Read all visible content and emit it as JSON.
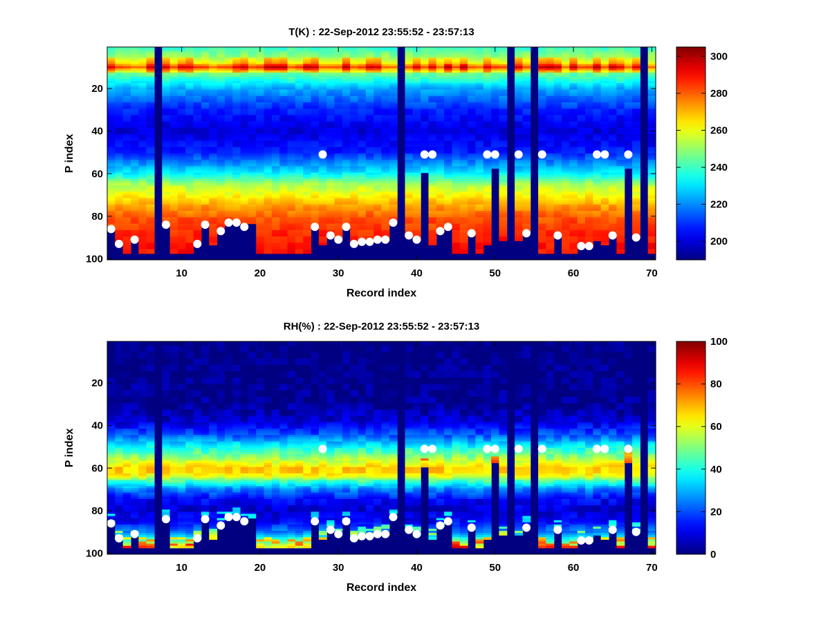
{
  "chart_data": [
    {
      "type": "heatmap",
      "title": "T(K) : 22-Sep-2012 23:55:52 - 23:57:13",
      "xlabel": "Record index",
      "ylabel": "P index",
      "xlim": [
        0.5,
        70.5
      ],
      "ylim": [
        0.5,
        100.5
      ],
      "y_reversed": true,
      "x_ticks": [
        "10",
        "20",
        "30",
        "40",
        "50",
        "60",
        "70"
      ],
      "y_ticks": [
        "20",
        "40",
        "60",
        "80",
        "100"
      ],
      "colorbar": {
        "colormap": "jet",
        "range": [
          190,
          305
        ],
        "ticks": [
          "200",
          "220",
          "240",
          "260",
          "280",
          "300"
        ]
      },
      "profile": {
        "p_index": [
          1,
          5,
          8,
          10,
          13,
          20,
          30,
          40,
          50,
          60,
          65,
          70,
          75,
          80,
          85,
          90,
          95,
          100
        ],
        "value": [
          240,
          250,
          262,
          282,
          246,
          224,
          208,
          200,
          208,
          232,
          252,
          262,
          272,
          280,
          284,
          287,
          289,
          290
        ]
      },
      "masked_columns": [
        7,
        38,
        52,
        55,
        69
      ],
      "column_bottom": [
        86,
        94,
        98,
        92,
        98,
        98,
        101,
        84,
        98,
        98,
        98,
        94,
        84,
        94,
        86,
        84,
        84,
        84,
        84,
        98,
        98,
        98,
        98,
        98,
        98,
        98,
        86,
        94,
        90,
        92,
        86,
        94,
        93,
        93,
        92,
        92,
        83,
        101,
        90,
        92,
        60,
        94,
        88,
        86,
        98,
        98,
        88,
        98,
        94,
        58,
        92,
        101,
        92,
        88,
        101,
        98,
        98,
        90,
        98,
        98,
        95,
        95,
        92,
        94,
        90,
        98,
        58,
        91,
        101,
        98
      ],
      "markers": [
        [
          1,
          86
        ],
        [
          2,
          93
        ],
        [
          4,
          91
        ],
        [
          8,
          84
        ],
        [
          12,
          93
        ],
        [
          13,
          84
        ],
        [
          15,
          87
        ],
        [
          16,
          83
        ],
        [
          17,
          83
        ],
        [
          18,
          85
        ],
        [
          27,
          85
        ],
        [
          28,
          51
        ],
        [
          29,
          89
        ],
        [
          30,
          91
        ],
        [
          31,
          85
        ],
        [
          32,
          93
        ],
        [
          33,
          92
        ],
        [
          34,
          92
        ],
        [
          35,
          91
        ],
        [
          36,
          91
        ],
        [
          37,
          83
        ],
        [
          39,
          89
        ],
        [
          40,
          91
        ],
        [
          41,
          51
        ],
        [
          42,
          51
        ],
        [
          43,
          87
        ],
        [
          44,
          85
        ],
        [
          47,
          88
        ],
        [
          49,
          51
        ],
        [
          50,
          51
        ],
        [
          53,
          51
        ],
        [
          54,
          88
        ],
        [
          56,
          51
        ],
        [
          58,
          89
        ],
        [
          61,
          94
        ],
        [
          62,
          94
        ],
        [
          63,
          51
        ],
        [
          64,
          51
        ],
        [
          65,
          89
        ],
        [
          67,
          51
        ],
        [
          68,
          90
        ]
      ]
    },
    {
      "type": "heatmap",
      "title": "RH(%) : 22-Sep-2012 23:55:52 - 23:57:13",
      "xlabel": "Record index",
      "ylabel": "P index",
      "xlim": [
        0.5,
        70.5
      ],
      "ylim": [
        0.5,
        100.5
      ],
      "y_reversed": true,
      "x_ticks": [
        "10",
        "20",
        "30",
        "40",
        "50",
        "60",
        "70"
      ],
      "y_ticks": [
        "20",
        "40",
        "60",
        "80",
        "100"
      ],
      "colorbar": {
        "colormap": "jet",
        "range": [
          0,
          100
        ],
        "ticks": [
          "0",
          "20",
          "40",
          "60",
          "80",
          "100"
        ]
      },
      "profile": {
        "p_index": [
          1,
          30,
          38,
          45,
          50,
          55,
          58,
          60,
          62,
          64,
          66,
          70,
          75,
          80,
          85,
          90,
          94,
          97,
          100
        ],
        "value": [
          0,
          2,
          8,
          22,
          38,
          52,
          62,
          67,
          66,
          60,
          45,
          25,
          12,
          8,
          12,
          25,
          45,
          62,
          60
        ]
      },
      "masked_columns": [
        7,
        38,
        52,
        55,
        69
      ],
      "column_bottom": [
        86,
        94,
        98,
        92,
        98,
        98,
        101,
        84,
        98,
        98,
        98,
        94,
        84,
        94,
        86,
        84,
        84,
        84,
        84,
        98,
        98,
        98,
        98,
        98,
        98,
        98,
        86,
        94,
        90,
        92,
        86,
        94,
        93,
        93,
        92,
        92,
        83,
        101,
        90,
        92,
        60,
        94,
        88,
        86,
        98,
        98,
        88,
        98,
        94,
        58,
        92,
        101,
        92,
        88,
        101,
        98,
        98,
        90,
        98,
        98,
        95,
        95,
        92,
        94,
        90,
        98,
        58,
        91,
        101,
        98
      ],
      "markers": [
        [
          1,
          86
        ],
        [
          2,
          93
        ],
        [
          4,
          91
        ],
        [
          8,
          84
        ],
        [
          12,
          93
        ],
        [
          13,
          84
        ],
        [
          15,
          87
        ],
        [
          16,
          83
        ],
        [
          17,
          83
        ],
        [
          18,
          85
        ],
        [
          27,
          85
        ],
        [
          28,
          51
        ],
        [
          29,
          89
        ],
        [
          30,
          91
        ],
        [
          31,
          85
        ],
        [
          32,
          93
        ],
        [
          33,
          92
        ],
        [
          34,
          92
        ],
        [
          35,
          91
        ],
        [
          36,
          91
        ],
        [
          37,
          83
        ],
        [
          39,
          89
        ],
        [
          40,
          91
        ],
        [
          41,
          51
        ],
        [
          42,
          51
        ],
        [
          43,
          87
        ],
        [
          44,
          85
        ],
        [
          47,
          88
        ],
        [
          49,
          51
        ],
        [
          50,
          51
        ],
        [
          53,
          51
        ],
        [
          54,
          88
        ],
        [
          56,
          51
        ],
        [
          58,
          89
        ],
        [
          61,
          94
        ],
        [
          62,
          94
        ],
        [
          63,
          51
        ],
        [
          64,
          51
        ],
        [
          65,
          89
        ],
        [
          67,
          51
        ],
        [
          68,
          90
        ]
      ]
    }
  ]
}
